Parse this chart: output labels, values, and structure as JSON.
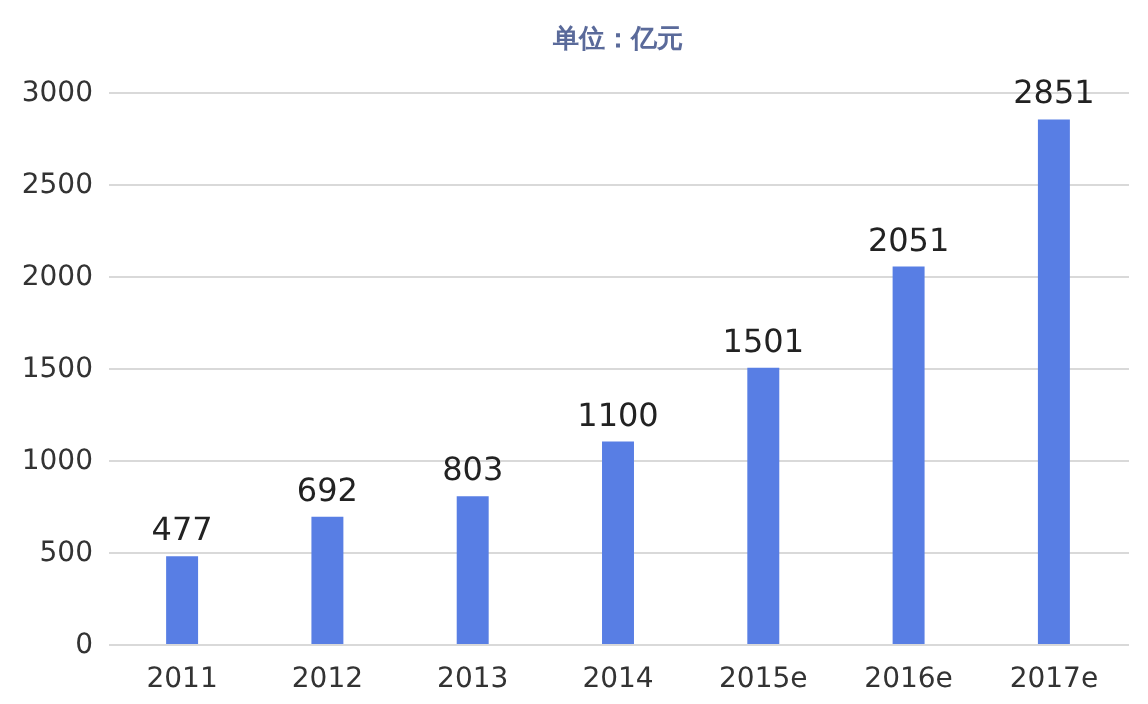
{
  "chart_data": {
    "type": "bar",
    "title": "单位：亿元",
    "categories": [
      "2011",
      "2012",
      "2013",
      "2014",
      "2015e",
      "2016e",
      "2017e"
    ],
    "values": [
      477,
      692,
      803,
      1100,
      1501,
      2051,
      2851
    ],
    "color": "#587ee4",
    "ylim": [
      0,
      3000
    ],
    "yticks": [
      0,
      500,
      1000,
      1500,
      2000,
      2500,
      3000
    ],
    "grid": "y",
    "data_labels": true
  }
}
